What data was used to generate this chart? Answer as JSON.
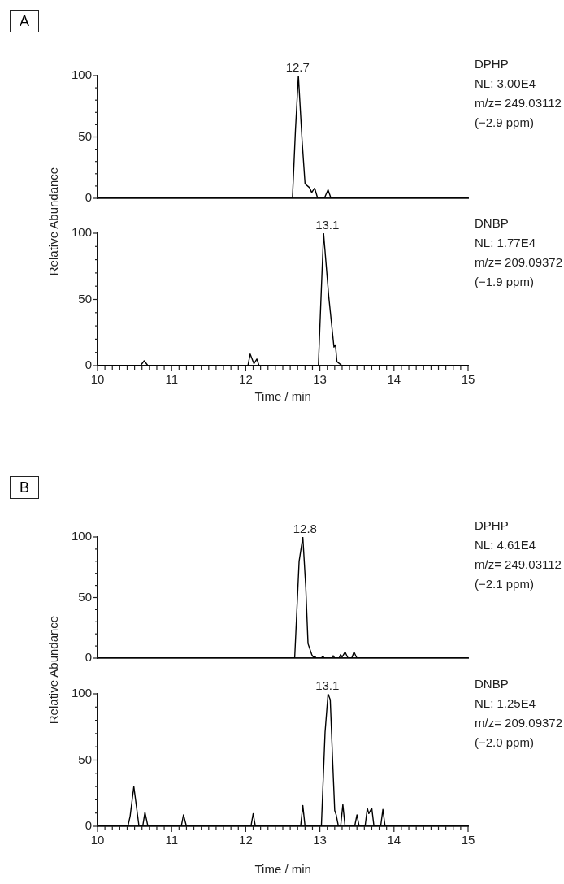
{
  "chart_data": [
    {
      "type": "line",
      "title": "A",
      "ylabel": "Relative Abundance",
      "xlim": [
        10,
        15
      ],
      "ylim": [
        0,
        100
      ],
      "yticks": [
        0,
        {
          "value": 10,
          "label": null
        },
        {
          "value": 20,
          "label": null
        },
        {
          "value": 30,
          "label": null
        },
        {
          "value": 40,
          "label": null
        },
        50,
        {
          "value": 60,
          "label": null
        },
        {
          "value": 70,
          "label": null
        },
        {
          "value": 80,
          "label": null
        },
        {
          "value": 90,
          "label": null
        },
        100
      ],
      "tick_labels": "y",
      "grid": false,
      "legend": false,
      "marker": "none",
      "line_style": "solid",
      "series": [
        {
          "name": "DPHP",
          "color": "#000000",
          "x": [
            10,
            12.63,
            12.67,
            12.71,
            12.76,
            12.8,
            12.86,
            12.89,
            12.93,
            12.97,
            13.06,
            13.11,
            13.15,
            15
          ],
          "values": [
            0,
            0,
            55,
            100,
            47,
            11.8,
            8.7,
            4.7,
            8.3,
            0,
            0,
            7,
            0,
            0
          ]
        }
      ],
      "annotations": [
        {
          "text": "12.7",
          "x": 12.7,
          "y": 100
        },
        "NL: 3.00E4",
        "m/z= 249.03112",
        "(−2.9 ppm)"
      ]
    },
    {
      "type": "line",
      "xlabel": "Time / min",
      "xlim": [
        10,
        15
      ],
      "ylim": [
        0,
        100
      ],
      "xticks": [
        10,
        {
          "value": 10.1,
          "label": null
        },
        {
          "value": 10.2,
          "label": null
        },
        {
          "value": 10.3,
          "label": null
        },
        {
          "value": 10.4,
          "label": null
        },
        {
          "value": 10.5,
          "label": null
        },
        {
          "value": 10.6,
          "label": null
        },
        {
          "value": 10.7,
          "label": null
        },
        {
          "value": 10.8,
          "label": null
        },
        {
          "value": 10.9,
          "label": null
        },
        11,
        {
          "value": 11.1,
          "label": null
        },
        {
          "value": 11.2,
          "label": null
        },
        {
          "value": 11.3,
          "label": null
        },
        {
          "value": 11.4,
          "label": null
        },
        {
          "value": 11.5,
          "label": null
        },
        {
          "value": 11.6,
          "label": null
        },
        {
          "value": 11.7,
          "label": null
        },
        {
          "value": 11.8,
          "label": null
        },
        {
          "value": 11.9,
          "label": null
        },
        12,
        {
          "value": 12.1,
          "label": null
        },
        {
          "value": 12.2,
          "label": null
        },
        {
          "value": 12.3,
          "label": null
        },
        {
          "value": 12.4,
          "label": null
        },
        {
          "value": 12.5,
          "label": null
        },
        {
          "value": 12.6,
          "label": null
        },
        {
          "value": 12.7,
          "label": null
        },
        {
          "value": 12.8,
          "label": null
        },
        {
          "value": 12.9,
          "label": null
        },
        13,
        {
          "value": 13.1,
          "label": null
        },
        {
          "value": 13.2,
          "label": null
        },
        {
          "value": 13.3,
          "label": null
        },
        {
          "value": 13.4,
          "label": null
        },
        {
          "value": 13.5,
          "label": null
        },
        {
          "value": 13.6,
          "label": null
        },
        {
          "value": 13.7,
          "label": null
        },
        {
          "value": 13.8,
          "label": null
        },
        {
          "value": 13.9,
          "label": null
        },
        14,
        {
          "value": 14.1,
          "label": null
        },
        {
          "value": 14.2,
          "label": null
        },
        {
          "value": 14.3,
          "label": null
        },
        {
          "value": 14.4,
          "label": null
        },
        {
          "value": 14.5,
          "label": null
        },
        {
          "value": 14.6,
          "label": null
        },
        {
          "value": 14.7,
          "label": null
        },
        {
          "value": 14.8,
          "label": null
        },
        {
          "value": 14.9,
          "label": null
        },
        15
      ],
      "yticks": [
        0,
        {
          "value": 10,
          "label": null
        },
        {
          "value": 20,
          "label": null
        },
        {
          "value": 30,
          "label": null
        },
        {
          "value": 40,
          "label": null
        },
        50,
        {
          "value": 60,
          "label": null
        },
        {
          "value": 70,
          "label": null
        },
        {
          "value": 80,
          "label": null
        },
        {
          "value": 90,
          "label": null
        },
        100
      ],
      "grid": false,
      "legend": false,
      "marker": "none",
      "line_style": "solid",
      "series": [
        {
          "name": "DNBP",
          "color": "#000000",
          "x": [
            10,
            10.58,
            10.63,
            10.68,
            12.03,
            12.06,
            12.11,
            12.15,
            12.18,
            12.98,
            13.02,
            13.05,
            13.12,
            13.19,
            13.21,
            13.23,
            13.3,
            15
          ],
          "values": [
            0,
            0,
            3.7,
            0,
            0,
            8.8,
            1.5,
            5,
            0,
            0,
            58,
            100,
            52,
            14,
            15.7,
            3,
            0,
            0
          ]
        }
      ],
      "annotations": [
        {
          "text": "13.1",
          "x": 13.1,
          "y": 100
        },
        "NL: 1.77E4",
        "m/z= 209.09372",
        "(−1.9 ppm)"
      ]
    },
    {
      "type": "line",
      "title": "B",
      "ylabel": "Relative Abundance",
      "xlim": [
        10,
        15
      ],
      "ylim": [
        0,
        100
      ],
      "yticks": [
        0,
        {
          "value": 10,
          "label": null
        },
        {
          "value": 20,
          "label": null
        },
        {
          "value": 30,
          "label": null
        },
        {
          "value": 40,
          "label": null
        },
        50,
        {
          "value": 60,
          "label": null
        },
        {
          "value": 70,
          "label": null
        },
        {
          "value": 80,
          "label": null
        },
        {
          "value": 90,
          "label": null
        },
        100
      ],
      "tick_labels": "y",
      "grid": false,
      "legend": false,
      "marker": "none",
      "line_style": "solid",
      "series": [
        {
          "name": "DPHP",
          "color": "#000000",
          "x": [
            10,
            12.66,
            12.72,
            12.77,
            12.81,
            12.84,
            12.89,
            12.92,
            12.93,
            12.95,
            13.02,
            13.04,
            13.06,
            13.16,
            13.18,
            13.2,
            13.26,
            13.28,
            13.3,
            13.34,
            13.38,
            13.43,
            13.46,
            13.5,
            15
          ],
          "values": [
            0,
            0,
            80,
            100,
            58,
            12,
            3,
            0,
            1.5,
            0,
            0,
            1.5,
            0,
            0,
            2,
            0,
            0,
            3,
            1,
            5,
            0,
            0,
            5,
            0,
            0
          ]
        }
      ],
      "annotations": [
        {
          "text": "12.8",
          "x": 12.8,
          "y": 100
        },
        "NL: 4.61E4",
        "m/z= 249.03112",
        "(−2.1 ppm)"
      ]
    },
    {
      "type": "line",
      "xlabel": "Time / min",
      "xlim": [
        10,
        15
      ],
      "ylim": [
        0,
        100
      ],
      "xticks": [
        10,
        {
          "value": 10.1,
          "label": null
        },
        {
          "value": 10.2,
          "label": null
        },
        {
          "value": 10.3,
          "label": null
        },
        {
          "value": 10.4,
          "label": null
        },
        {
          "value": 10.5,
          "label": null
        },
        {
          "value": 10.6,
          "label": null
        },
        {
          "value": 10.7,
          "label": null
        },
        {
          "value": 10.8,
          "label": null
        },
        {
          "value": 10.9,
          "label": null
        },
        11,
        {
          "value": 11.1,
          "label": null
        },
        {
          "value": 11.2,
          "label": null
        },
        {
          "value": 11.3,
          "label": null
        },
        {
          "value": 11.4,
          "label": null
        },
        {
          "value": 11.5,
          "label": null
        },
        {
          "value": 11.6,
          "label": null
        },
        {
          "value": 11.7,
          "label": null
        },
        {
          "value": 11.8,
          "label": null
        },
        {
          "value": 11.9,
          "label": null
        },
        12,
        {
          "value": 12.1,
          "label": null
        },
        {
          "value": 12.2,
          "label": null
        },
        {
          "value": 12.3,
          "label": null
        },
        {
          "value": 12.4,
          "label": null
        },
        {
          "value": 12.5,
          "label": null
        },
        {
          "value": 12.6,
          "label": null
        },
        {
          "value": 12.7,
          "label": null
        },
        {
          "value": 12.8,
          "label": null
        },
        {
          "value": 12.9,
          "label": null
        },
        13,
        {
          "value": 13.1,
          "label": null
        },
        {
          "value": 13.2,
          "label": null
        },
        {
          "value": 13.3,
          "label": null
        },
        {
          "value": 13.4,
          "label": null
        },
        {
          "value": 13.5,
          "label": null
        },
        {
          "value": 13.6,
          "label": null
        },
        {
          "value": 13.7,
          "label": null
        },
        {
          "value": 13.8,
          "label": null
        },
        {
          "value": 13.9,
          "label": null
        },
        14,
        {
          "value": 14.1,
          "label": null
        },
        {
          "value": 14.2,
          "label": null
        },
        {
          "value": 14.3,
          "label": null
        },
        {
          "value": 14.4,
          "label": null
        },
        {
          "value": 14.5,
          "label": null
        },
        {
          "value": 14.6,
          "label": null
        },
        {
          "value": 14.7,
          "label": null
        },
        {
          "value": 14.8,
          "label": null
        },
        {
          "value": 14.9,
          "label": null
        },
        15
      ],
      "yticks": [
        0,
        {
          "value": 10,
          "label": null
        },
        {
          "value": 20,
          "label": null
        },
        {
          "value": 30,
          "label": null
        },
        {
          "value": 40,
          "label": null
        },
        50,
        {
          "value": 60,
          "label": null
        },
        {
          "value": 70,
          "label": null
        },
        {
          "value": 80,
          "label": null
        },
        {
          "value": 90,
          "label": null
        },
        100
      ],
      "grid": false,
      "legend": false,
      "marker": "none",
      "line_style": "solid",
      "series": [
        {
          "name": "DNBP",
          "color": "#000000",
          "x": [
            10,
            10.41,
            10.44,
            10.49,
            10.56,
            10.61,
            10.64,
            10.68,
            11.13,
            11.16,
            11.2,
            12.07,
            12.1,
            12.13,
            12.74,
            12.77,
            12.8,
            13.02,
            13.07,
            13.11,
            13.14,
            13.17,
            13.2,
            13.22,
            13.25,
            13.28,
            13.31,
            13.34,
            13.47,
            13.5,
            13.53,
            13.61,
            13.64,
            13.66,
            13.7,
            13.73,
            13.82,
            13.85,
            13.88,
            15
          ],
          "values": [
            0,
            0,
            7.6,
            30,
            0,
            0,
            10.6,
            0,
            0,
            8.6,
            0,
            0,
            9.6,
            0,
            0,
            15.7,
            0,
            0,
            71,
            100,
            95.5,
            52.6,
            12,
            8.6,
            0,
            0,
            16.4,
            0,
            0,
            8.6,
            0,
            0,
            13.7,
            9.6,
            13.7,
            0,
            0,
            12.7,
            0,
            0
          ]
        }
      ],
      "annotations": [
        {
          "text": "13.1",
          "x": 13.1,
          "y": 100
        },
        "NL: 1.25E4",
        "m/z= 209.09372",
        "(−2.0 ppm)"
      ]
    }
  ]
}
